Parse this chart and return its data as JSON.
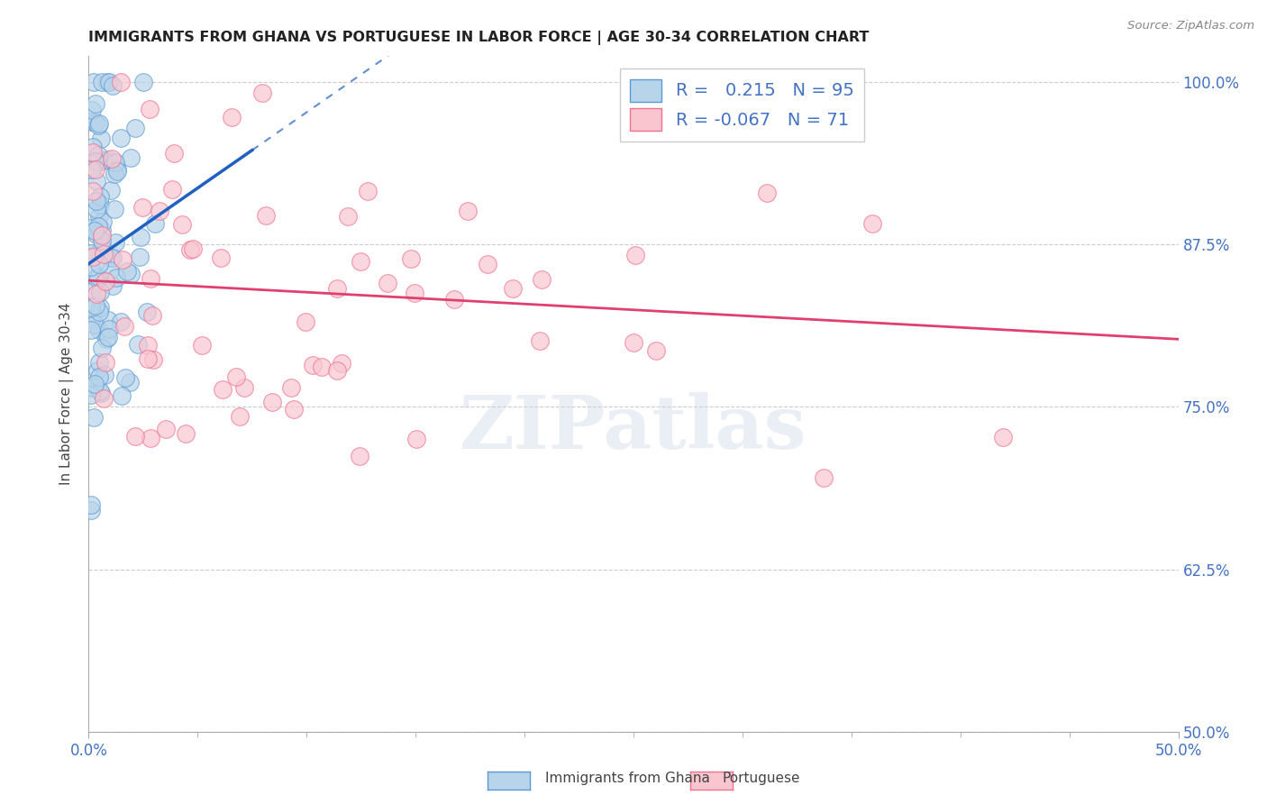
{
  "title": "IMMIGRANTS FROM GHANA VS PORTUGUESE IN LABOR FORCE | AGE 30-34 CORRELATION CHART",
  "source": "Source: ZipAtlas.com",
  "ylabel": "In Labor Force | Age 30-34",
  "xlim": [
    0.0,
    0.5
  ],
  "ylim": [
    0.5,
    1.02
  ],
  "ghana_R": 0.215,
  "ghana_N": 95,
  "portuguese_R": -0.067,
  "portuguese_N": 71,
  "ghana_fill_color": "#b8d4ea",
  "ghana_edge_color": "#5b9bd5",
  "portuguese_fill_color": "#f9c6d0",
  "portuguese_edge_color": "#f07090",
  "ghana_line_color": "#2060c0",
  "portuguese_line_color": "#e04070",
  "tick_color": "#4472c4",
  "grid_color": "#cccccc",
  "title_color": "#222222",
  "watermark_text": "ZIPatlas",
  "legend_text_color": "#4472c4",
  "yticks": [
    0.5,
    0.625,
    0.75,
    0.875,
    1.0
  ],
  "ytick_labels": [
    "50.0%",
    "62.5%",
    "75.0%",
    "87.5%",
    "100.0%"
  ]
}
